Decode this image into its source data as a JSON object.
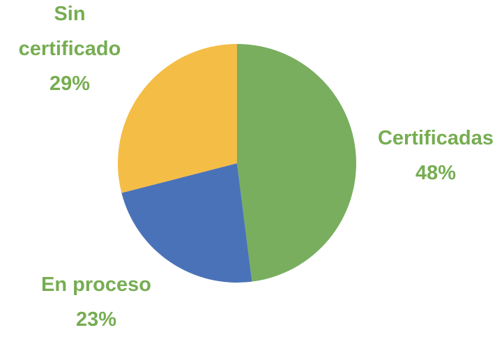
{
  "chart_data": {
    "type": "pie",
    "categories": [
      "Certificadas",
      "En proceso",
      "Sin certificado"
    ],
    "values": [
      48,
      23,
      29
    ],
    "value_labels": [
      "48%",
      "23%",
      "29%"
    ],
    "colors": [
      "#79ae5f",
      "#4a72b8",
      "#f4bd46"
    ],
    "label_color": "#76ad52"
  }
}
